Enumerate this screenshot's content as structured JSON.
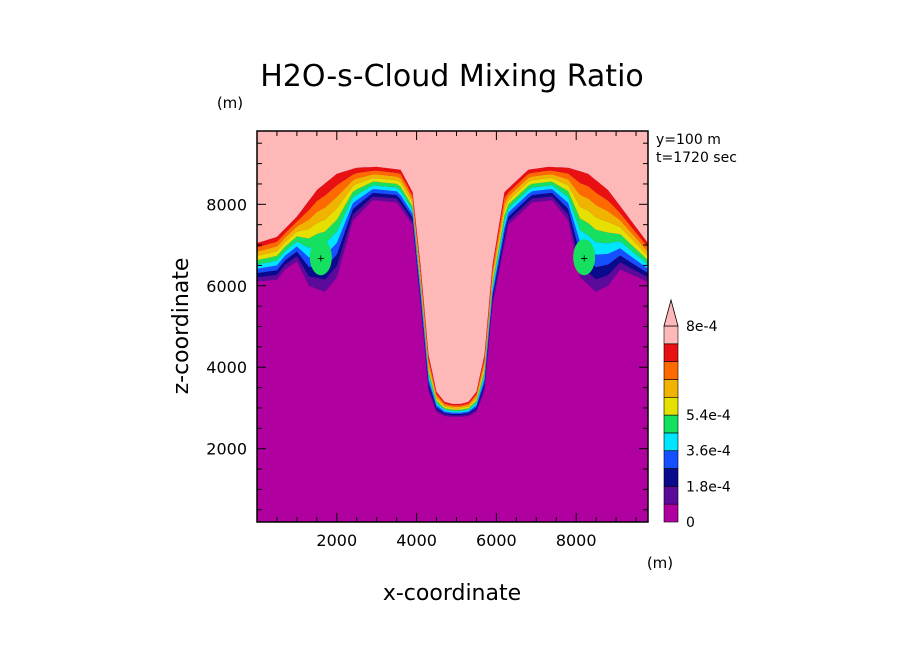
{
  "chart_data": {
    "type": "contour",
    "title": "H2O-s-Cloud Mixing Ratio",
    "xlabel": "x-coordinate",
    "ylabel": "z-coordinate",
    "x_unit": "(m)",
    "y_unit": "(m)",
    "xlim": [
      0,
      9800
    ],
    "ylim": [
      200,
      9800
    ],
    "x_ticks": [
      2000,
      4000,
      6000,
      8000
    ],
    "y_ticks": [
      2000,
      4000,
      6000,
      8000
    ],
    "x_tick_labels": [
      "2000",
      "4000",
      "6000",
      "8000"
    ],
    "y_tick_labels": [
      "2000",
      "4000",
      "6000",
      "8000"
    ],
    "annotations": [
      "y=100 m",
      "t=1720 sec"
    ],
    "colorbar": {
      "levels": [
        0,
        9e-05,
        0.00018,
        0.00027,
        0.00036,
        0.00045,
        0.00054,
        0.00063,
        0.00072,
        0.0008
      ],
      "labels": [
        "0",
        "1.8e-4",
        "3.6e-4",
        "5.4e-4",
        "8e-4"
      ],
      "label_levels": [
        0,
        0.00018,
        0.00036,
        0.00054,
        0.0008
      ],
      "colors": [
        "#b000a0",
        "#5c0a9a",
        "#0a0a8c",
        "#1450ff",
        "#00e5ff",
        "#16e060",
        "#e6e000",
        "#f0b400",
        "#ff6a00",
        "#e81010",
        "#ffb8b8"
      ],
      "extend": "max"
    },
    "contour_boundaries": [
      {
        "level_index": 0,
        "color": "#ffb8b8",
        "x": [
          0,
          500,
          1000,
          1500,
          2000,
          2500,
          3000,
          3600,
          3900,
          4100,
          4300,
          4500,
          4700,
          4900,
          5100,
          5300,
          5500,
          5700,
          5900,
          6200,
          6800,
          7300,
          7800,
          8300,
          8800,
          9300,
          9800
        ],
        "z": [
          7050,
          7200,
          7700,
          8350,
          8750,
          8900,
          8920,
          8850,
          8300,
          6500,
          4300,
          3400,
          3150,
          3100,
          3100,
          3150,
          3400,
          4300,
          6500,
          8300,
          8850,
          8920,
          8900,
          8750,
          8350,
          7700,
          7050
        ]
      },
      {
        "level_index": 10,
        "color": "#b000a0",
        "x": [
          0,
          500,
          700,
          1000,
          1300,
          1700,
          2000,
          2400,
          2900,
          3500,
          3900,
          4100,
          4300,
          4500,
          4700,
          4900,
          5100,
          5300,
          5500,
          5700,
          5900,
          6300,
          6900,
          7400,
          7800,
          8100,
          8500,
          8800,
          9100,
          9800
        ],
        "z": [
          6100,
          6150,
          6400,
          6600,
          6000,
          5850,
          6200,
          7600,
          8100,
          8050,
          7500,
          5500,
          3400,
          2900,
          2800,
          2780,
          2780,
          2800,
          2900,
          3400,
          5500,
          7500,
          8050,
          8100,
          7600,
          6200,
          5850,
          6000,
          6400,
          6100
        ]
      }
    ],
    "annotation_points": [
      {
        "x": 1600,
        "z": 6700,
        "label": "+"
      },
      {
        "x": 8200,
        "z": 6700,
        "label": "+"
      }
    ]
  }
}
